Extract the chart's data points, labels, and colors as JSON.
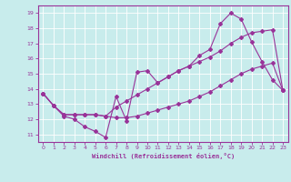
{
  "title": "",
  "xlabel": "Windchill (Refroidissement éolien,°C)",
  "background_color": "#c8ecec",
  "line_color": "#993399",
  "grid_color": "#ffffff",
  "xlim": [
    -0.5,
    23.5
  ],
  "ylim": [
    10.5,
    19.5
  ],
  "xticks": [
    0,
    1,
    2,
    3,
    4,
    5,
    6,
    7,
    8,
    9,
    10,
    11,
    12,
    13,
    14,
    15,
    16,
    17,
    18,
    19,
    20,
    21,
    22,
    23
  ],
  "yticks": [
    11,
    12,
    13,
    14,
    15,
    16,
    17,
    18,
    19
  ],
  "series1": [
    13.7,
    12.9,
    12.2,
    12.0,
    11.5,
    11.2,
    10.8,
    13.5,
    11.9,
    15.1,
    15.2,
    14.4,
    14.8,
    15.2,
    15.5,
    16.2,
    16.6,
    18.3,
    19.0,
    18.6,
    17.1,
    15.8,
    14.6,
    13.9
  ],
  "series2": [
    13.7,
    12.9,
    12.3,
    12.3,
    12.3,
    12.3,
    12.2,
    12.8,
    13.2,
    13.6,
    14.0,
    14.4,
    14.8,
    15.2,
    15.5,
    15.8,
    16.1,
    16.5,
    17.0,
    17.4,
    17.7,
    17.8,
    17.9,
    13.9
  ],
  "series3": [
    13.7,
    12.9,
    12.3,
    12.3,
    12.3,
    12.3,
    12.2,
    12.1,
    12.1,
    12.2,
    12.4,
    12.6,
    12.8,
    13.0,
    13.2,
    13.5,
    13.8,
    14.2,
    14.6,
    15.0,
    15.3,
    15.5,
    15.7,
    13.9
  ]
}
